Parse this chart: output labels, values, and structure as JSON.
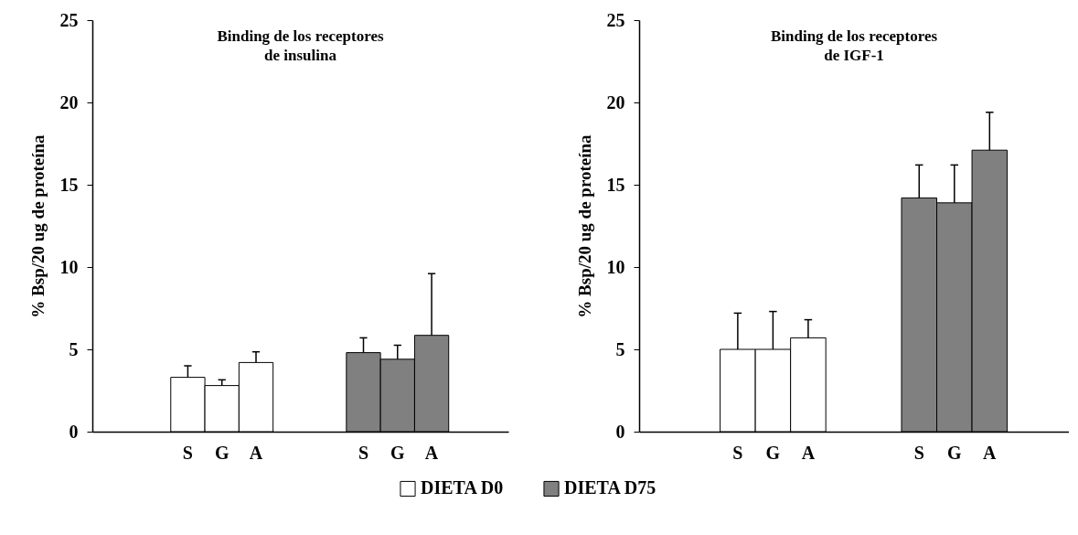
{
  "chart_data": [
    {
      "type": "bar",
      "title": "Binding de los receptores\nde insulina",
      "ylabel": "% Bsp/20 ug de proteína",
      "categories": [
        "S",
        "G",
        "A",
        "S",
        "G",
        "A"
      ],
      "series": [
        {
          "name": "DIETA D0",
          "color": "#ffffff",
          "values": [
            3.3,
            2.8,
            4.2,
            null,
            null,
            null
          ],
          "errors": [
            [
              3.3,
              4.0
            ],
            [
              2.8,
              3.15
            ],
            [
              4.2,
              4.85
            ],
            null,
            null,
            null
          ]
        },
        {
          "name": "DIETA D75",
          "color": "#808080",
          "values": [
            null,
            null,
            null,
            4.8,
            4.4,
            5.85
          ],
          "errors": [
            null,
            null,
            null,
            [
              4.8,
              5.7
            ],
            [
              4.4,
              5.25
            ],
            [
              5.85,
              9.6
            ]
          ]
        }
      ],
      "ylim": [
        0,
        25
      ],
      "yticks": [
        0,
        5,
        10,
        15,
        20,
        25
      ],
      "legend": "bottom right"
    },
    {
      "type": "bar",
      "title": "Binding de los receptores\nde IGF-1",
      "ylabel": "% Bsp/20 ug de proteína",
      "categories": [
        "S",
        "G",
        "A",
        "S",
        "G",
        "A"
      ],
      "series": [
        {
          "color": "#ffffff",
          "values": [
            5.0,
            5.0,
            5.7,
            null,
            null,
            null
          ],
          "errors": [
            [
              5.0,
              7.2
            ],
            [
              5.0,
              7.3
            ],
            [
              5.7,
              6.8
            ],
            null,
            null,
            null
          ]
        },
        {
          "color": "#808080",
          "values": [
            null,
            null,
            null,
            14.2,
            13.9,
            17.1
          ],
          "errors": [
            null,
            null,
            null,
            [
              14.2,
              16.2
            ],
            [
              13.9,
              16.2
            ],
            [
              17.1,
              19.4
            ]
          ]
        }
      ],
      "ylim": [
        0,
        25
      ],
      "yticks": [
        0,
        5,
        10,
        15,
        20,
        25
      ]
    }
  ]
}
